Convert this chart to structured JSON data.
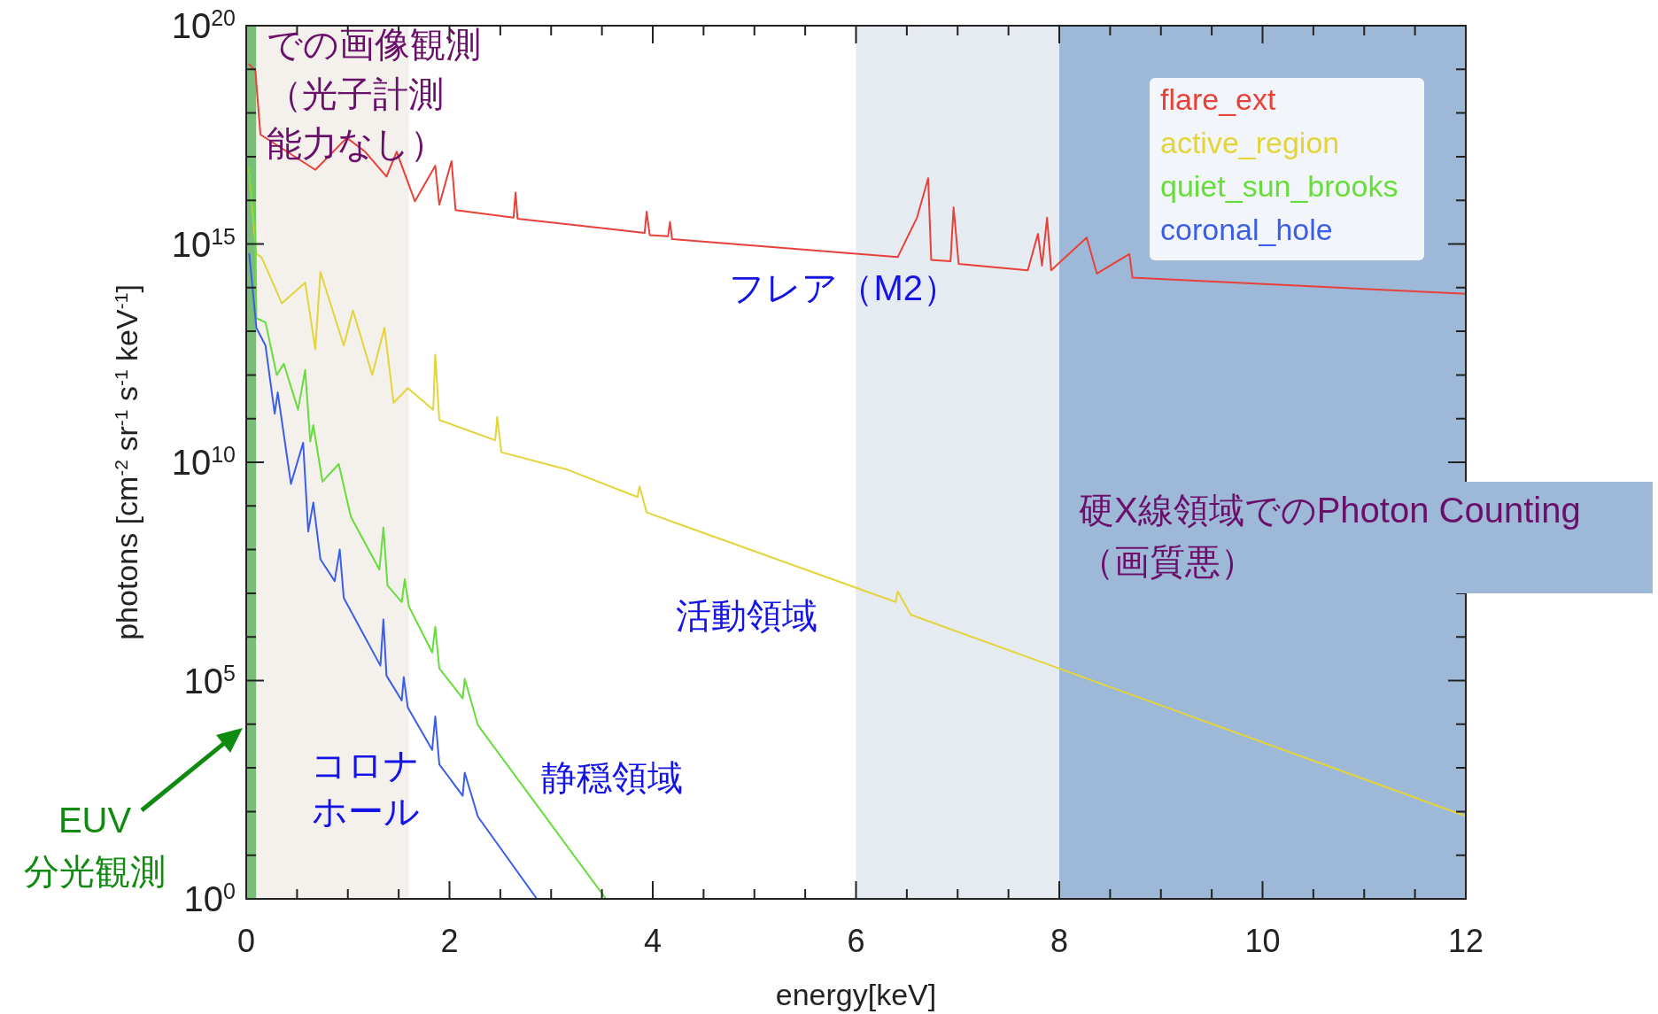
{
  "chart_data": {
    "type": "line",
    "log": "y",
    "xlabel": "energy[keV]",
    "ylabel": "photons [cm$^{-2}$ sr$^{-1}$ s$^{-1}$ keV$^{-1}$]",
    "xlim": [
      0,
      12
    ],
    "ylim": [
      1,
      1e+20
    ],
    "xticks": [
      0,
      {
        "value": 0.5,
        "label": null
      },
      {
        "value": 1,
        "label": null
      },
      {
        "value": 1.5,
        "label": null
      },
      2,
      {
        "value": 2.5,
        "label": null
      },
      {
        "value": 3,
        "label": null
      },
      {
        "value": 3.5,
        "label": null
      },
      4,
      {
        "value": 4.5,
        "label": null
      },
      {
        "value": 5,
        "label": null
      },
      {
        "value": 5.5,
        "label": null
      },
      6,
      {
        "value": 6.5,
        "label": null
      },
      {
        "value": 7,
        "label": null
      },
      {
        "value": 7.5,
        "label": null
      },
      8,
      {
        "value": 8.5,
        "label": null
      },
      {
        "value": 9,
        "label": null
      },
      {
        "value": 9.5,
        "label": null
      },
      10,
      {
        "value": 10.5,
        "label": null
      },
      {
        "value": 11,
        "label": null
      },
      {
        "value": 11.5,
        "label": null
      },
      12
    ],
    "yticks": [
      {
        "value": 1,
        "label": "10$^{0}$"
      },
      {
        "value": 10,
        "label": null
      },
      {
        "value": 100,
        "label": null
      },
      {
        "value": 1000,
        "label": null
      },
      {
        "value": 10000,
        "label": null
      },
      {
        "value": 100000,
        "label": "10$^{5}$"
      },
      {
        "value": 1000000.0,
        "label": null
      },
      {
        "value": 10000000.0,
        "label": null
      },
      {
        "value": 100000000.0,
        "label": null
      },
      {
        "value": 1000000000.0,
        "label": null
      },
      {
        "value": 10000000000.0,
        "label": "10$^{10}$"
      },
      {
        "value": 100000000000.0,
        "label": null
      },
      {
        "value": 1000000000000.0,
        "label": null
      },
      {
        "value": 10000000000000.0,
        "label": null
      },
      {
        "value": 100000000000000.0,
        "label": null
      },
      {
        "value": 1000000000000000.0,
        "label": "10$^{15}$"
      },
      {
        "value": 1e+16,
        "label": null
      },
      {
        "value": 1e+17,
        "label": null
      },
      {
        "value": 1e+18,
        "label": null
      },
      {
        "value": 1e+19,
        "label": null
      },
      {
        "value": 1e+20,
        "label": "10$^{20}$"
      }
    ],
    "legend": "top right",
    "series": [
      {
        "name": "flare_ext",
        "color": "#e8413a",
        "x": [
          0.03,
          0.09,
          0.14,
          0.68,
          0.99,
          1.17,
          1.38,
          1.48,
          1.66,
          1.86,
          1.9,
          2.02,
          2.06,
          2.63,
          2.65,
          2.67,
          3.92,
          3.94,
          3.97,
          4.15,
          4.17,
          4.19,
          6.41,
          6.6,
          6.71,
          6.74,
          6.93,
          6.96,
          7.01,
          7.69,
          7.79,
          7.83,
          7.88,
          7.92,
          8.27,
          8.37,
          8.69,
          8.72,
          12
        ],
        "values": [
          1.3e+19,
          9.3e+18,
          3.2e+17,
          5e+16,
          2.7e+17,
          1.3e+17,
          3.5e+16,
          1.3e+17,
          9500000000000000.0,
          6.2e+16,
          7900000000000000.0,
          7.9e+16,
          6000000000000000.0,
          4000000000000000.0,
          1.5e+16,
          3800000000000000.0,
          1800000000000000.0,
          5500000000000000.0,
          1600000000000000.0,
          1500000000000000.0,
          3200000000000000.0,
          1300000000000000.0,
          500000000000000.0,
          4000000000000000.0,
          3.2e+16,
          430000000000000.0,
          400000000000000.0,
          6900000000000000.0,
          350000000000000.0,
          250000000000000.0,
          1700000000000000.0,
          320000000000000.0,
          4000000000000000.0,
          250000000000000.0,
          1400000000000000.0,
          210000000000000.0,
          590000000000000.0,
          170000000000000.0,
          72000000000000.0
        ]
      },
      {
        "name": "active_region",
        "color": "#e3d43a",
        "x": [
          0.03,
          0.1,
          0.15,
          0.35,
          0.58,
          0.68,
          0.73,
          0.96,
          1.05,
          1.24,
          1.36,
          1.45,
          1.59,
          1.84,
          1.86,
          1.9,
          2.45,
          2.47,
          2.51,
          3.15,
          3.85,
          3.87,
          3.94,
          6.39,
          6.41,
          6.54,
          7.97,
          12
        ],
        "values": [
          5e+16,
          590000000000000.0,
          500000000000000.0,
          44000000000000.0,
          130000000000000.0,
          3900000000000.0,
          230000000000000.0,
          4700000000000.0,
          30000000000000.0,
          1000000000000.0,
          12000000000000.0,
          230000000000.0,
          500000000000.0,
          160000000000.0,
          2900000000000.0,
          93000000000.0,
          32000000000.0,
          110000000000.0,
          17000000000.0,
          6900000000.0,
          1600000000.0,
          2800000000.0,
          710000000.0,
          6300000.0,
          11000000.0,
          3200000.0,
          200000.0,
          79
        ]
      },
      {
        "name": "quiet_sun_brooks",
        "color": "#66dd3a",
        "x": [
          0.03,
          0.09,
          0.1,
          0.19,
          0.3,
          0.37,
          0.51,
          0.58,
          0.63,
          0.66,
          0.75,
          0.91,
          1.03,
          1.31,
          1.35,
          1.39,
          1.53,
          1.56,
          1.6,
          1.83,
          1.86,
          1.9,
          2.13,
          2.15,
          2.28,
          3.54
        ],
        "values": [
          6.2e+16,
          1800000000000000.0,
          20000000000000.0,
          16000000000000.0,
          1000000000000.0,
          1800000000000.0,
          160000000000.0,
          1300000000000.0,
          30000000000.0,
          71000000000.0,
          3600000000.0,
          9100000000.0,
          560000000.0,
          35000000.0,
          320000000.0,
          15000000.0,
          6300000.0,
          21000000.0,
          5000000.0,
          440000.0,
          1700000.0,
          190000.0,
          39000.0,
          110000.0,
          9500.0,
          1
        ]
      },
      {
        "name": "coronal_hole",
        "color": "#3b5ee8",
        "x": [
          0.03,
          0.1,
          0.19,
          0.28,
          0.31,
          0.44,
          0.56,
          0.61,
          0.66,
          0.73,
          0.87,
          0.92,
          0.96,
          1.32,
          1.35,
          1.38,
          1.53,
          1.55,
          1.59,
          1.83,
          1.86,
          1.9,
          2.13,
          2.15,
          2.28,
          2.86
        ],
        "values": [
          590000000000000.0,
          12000000000000.0,
          4700000000000.0,
          130000000000.0,
          400000000000.0,
          3200000000.0,
          28000000000.0,
          260000000.0,
          1200000000.0,
          60000000.0,
          19000000.0,
          100000000.0,
          7800000.0,
          220000.0,
          2500000.0,
          130000.0,
          35000.0,
          120000.0,
          24000.0,
          2600.0,
          15000.0,
          1200.0,
          230,
          780,
          76,
          1
        ]
      }
    ],
    "bands": [
      {
        "axis": "x",
        "from": 0,
        "to": 0.1,
        "color": "#79bd79",
        "label": "EUV 分光観測"
      },
      {
        "axis": "x",
        "from": 0.1,
        "to": 1.6,
        "color": "#f4f0ec",
        "label": "での画像観測（光子計測能力なし）"
      },
      {
        "axis": "x",
        "from": 6,
        "to": 8,
        "color": "#e6ebf2"
      },
      {
        "axis": "x",
        "from": 8,
        "to": 12,
        "color": "#9db9d7",
        "label": "硬X線領域でのPhoton Counting（画質悪）"
      }
    ],
    "annotations": [
      "フレア（M2）",
      "活動領域",
      "静穏領域",
      "コロナホール"
    ]
  }
}
